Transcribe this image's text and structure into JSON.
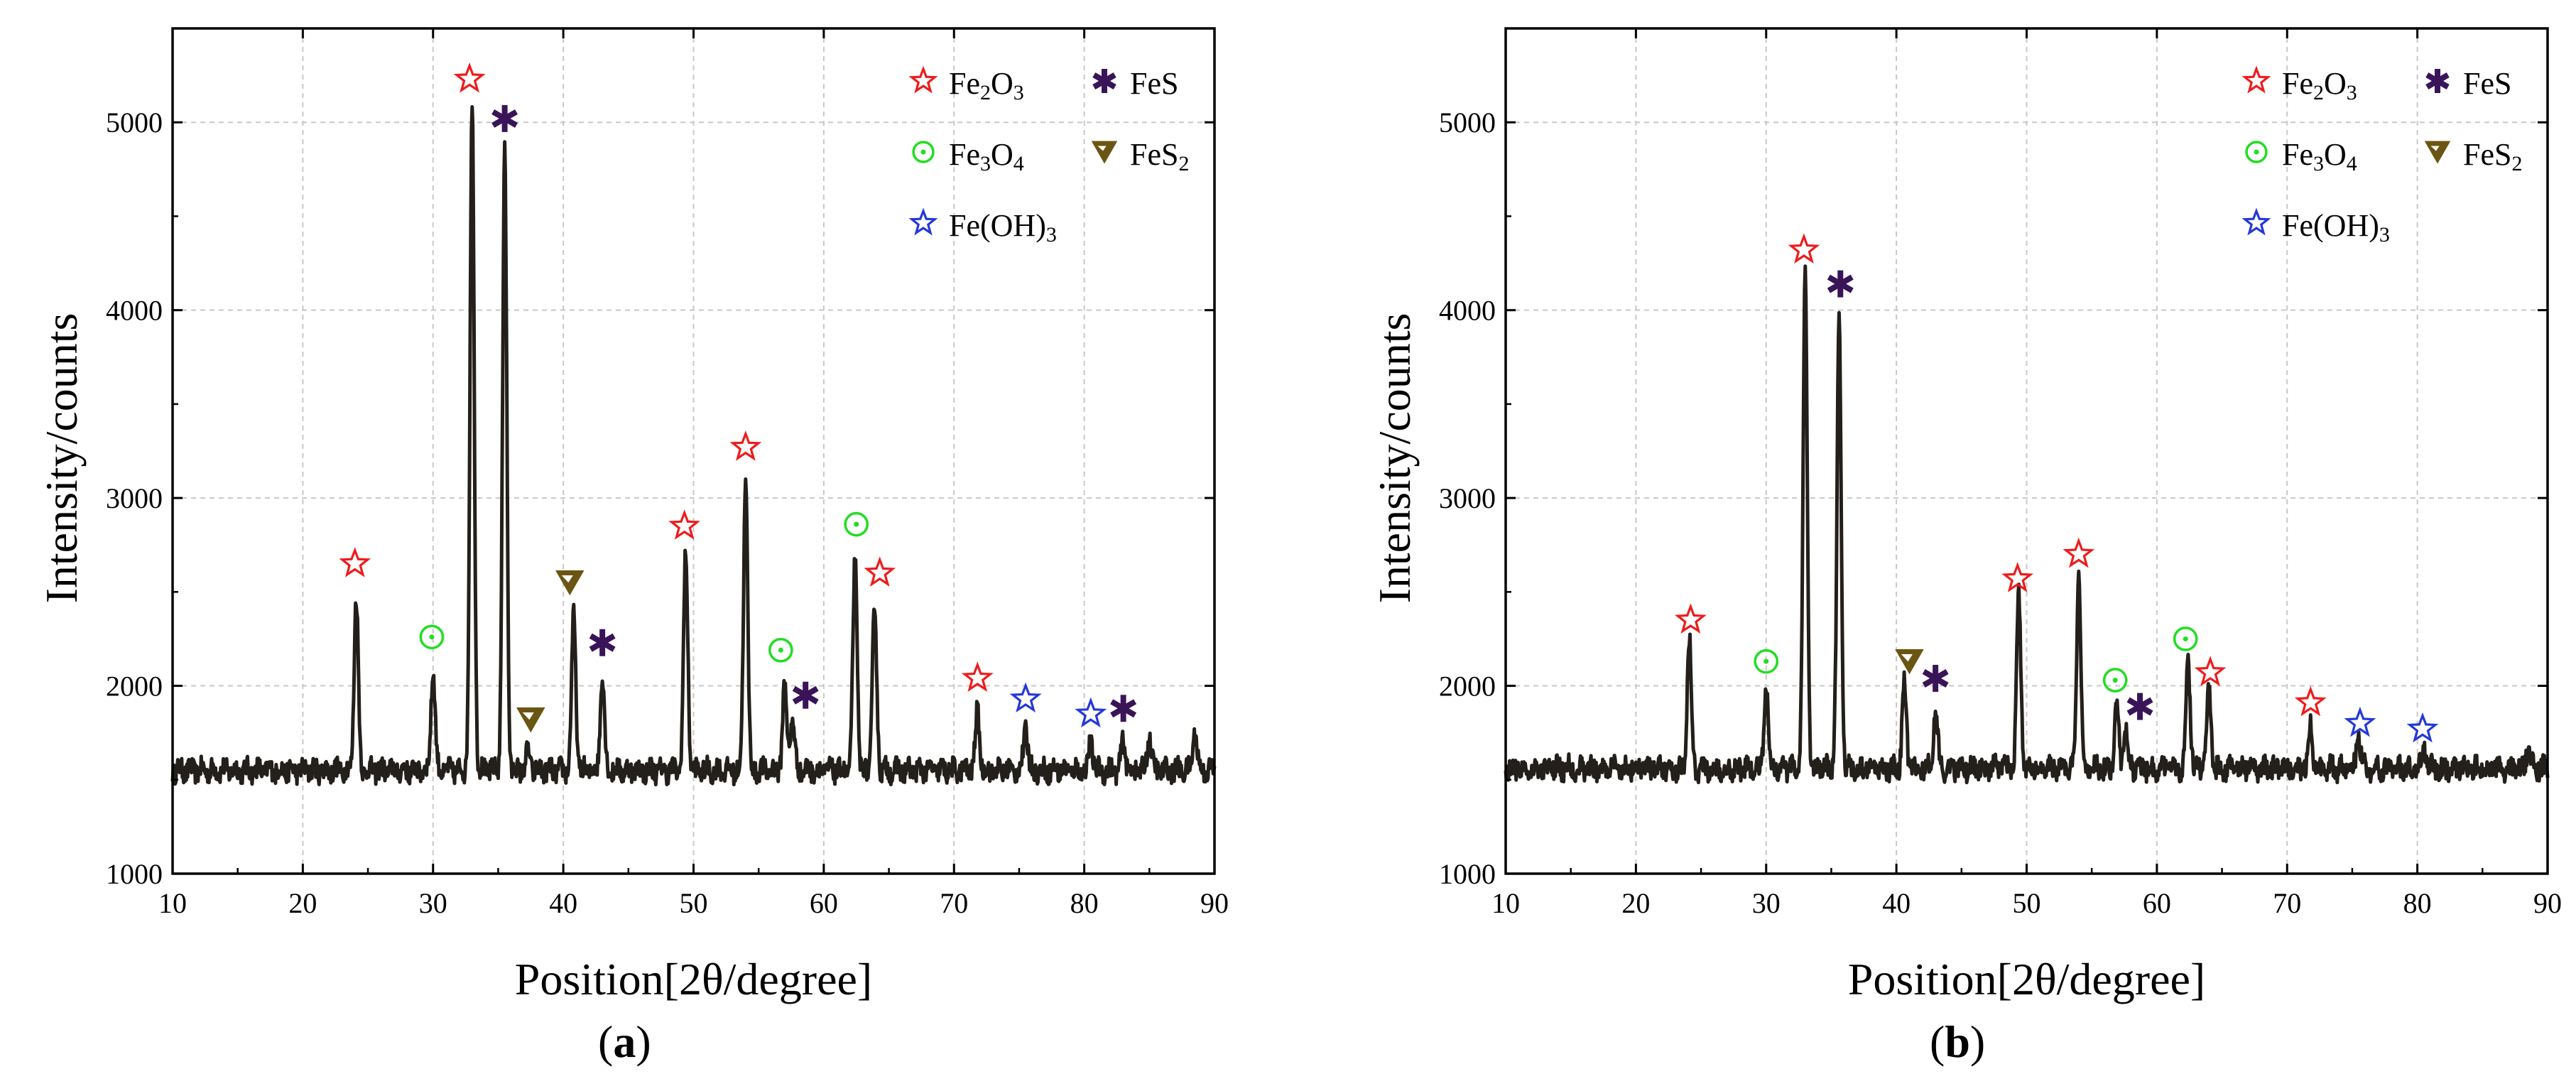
{
  "chart_data": [
    {
      "type": "line",
      "panel": "a",
      "xlabel": "Position[2θ/degree]",
      "ylabel": "Intensity/counts",
      "xlim": [
        10,
        90
      ],
      "ylim": [
        1000,
        5500
      ],
      "xticks": [
        10,
        20,
        30,
        40,
        50,
        60,
        70,
        80,
        90
      ],
      "yticks": [
        1000,
        2000,
        3000,
        4000,
        5000
      ],
      "grid": true,
      "legend_position": "top-right",
      "legend": [
        "Fe2O3",
        "FeS",
        "Fe3O4",
        "FeS2",
        "Fe(OH)3"
      ],
      "baseline": 1550,
      "series": [
        {
          "peaks": [
            {
              "x": 24.1,
              "y": 2470
            },
            {
              "x": 30.0,
              "y": 2080
            },
            {
              "x": 33.0,
              "y": 5110
            },
            {
              "x": 35.5,
              "y": 4880
            },
            {
              "x": 37.3,
              "y": 1650
            },
            {
              "x": 40.8,
              "y": 2370
            },
            {
              "x": 43.0,
              "y": 2060
            },
            {
              "x": 49.4,
              "y": 2710
            },
            {
              "x": 54.0,
              "y": 3100
            },
            {
              "x": 57.0,
              "y": 2010
            },
            {
              "x": 57.6,
              "y": 1830
            },
            {
              "x": 62.4,
              "y": 2680
            },
            {
              "x": 63.9,
              "y": 2430
            },
            {
              "x": 71.8,
              "y": 1860
            },
            {
              "x": 75.5,
              "y": 1780
            },
            {
              "x": 80.5,
              "y": 1700
            },
            {
              "x": 83.0,
              "y": 1700
            },
            {
              "x": 85.0,
              "y": 1730
            },
            {
              "x": 88.5,
              "y": 1760
            }
          ]
        }
      ],
      "markers": [
        {
          "phase": "Fe2O3",
          "x": 24.0,
          "y": 2650
        },
        {
          "phase": "Fe3O4",
          "x": 29.9,
          "y": 2260
        },
        {
          "phase": "Fe2O3",
          "x": 32.8,
          "y": 5230
        },
        {
          "phase": "FeS",
          "x": 35.5,
          "y": 5020
        },
        {
          "phase": "FeS2",
          "x": 37.5,
          "y": 1820
        },
        {
          "phase": "FeS2",
          "x": 40.5,
          "y": 2550
        },
        {
          "phase": "FeS",
          "x": 43.0,
          "y": 2230
        },
        {
          "phase": "Fe2O3",
          "x": 49.3,
          "y": 2850
        },
        {
          "phase": "Fe2O3",
          "x": 54.0,
          "y": 3270
        },
        {
          "phase": "Fe3O4",
          "x": 56.7,
          "y": 2190
        },
        {
          "phase": "FeS",
          "x": 58.6,
          "y": 1950
        },
        {
          "phase": "Fe3O4",
          "x": 62.5,
          "y": 2860
        },
        {
          "phase": "Fe2O3",
          "x": 64.3,
          "y": 2600
        },
        {
          "phase": "Fe2O3",
          "x": 71.8,
          "y": 2040
        },
        {
          "phase": "Fe(OH)3",
          "x": 75.5,
          "y": 1930
        },
        {
          "phase": "Fe(OH)3",
          "x": 80.5,
          "y": 1850
        },
        {
          "phase": "FeS",
          "x": 83.0,
          "y": 1880
        }
      ]
    },
    {
      "type": "line",
      "panel": "b",
      "xlabel": "Position[2θ/degree]",
      "ylabel": "Intensity/counts",
      "xlim": [
        10,
        90
      ],
      "ylim": [
        1000,
        5500
      ],
      "xticks": [
        10,
        20,
        30,
        40,
        50,
        60,
        70,
        80,
        90
      ],
      "yticks": [
        1000,
        2000,
        3000,
        4000,
        5000
      ],
      "grid": true,
      "legend_position": "top-right",
      "legend": [
        "Fe2O3",
        "FeS",
        "Fe3O4",
        "FeS2",
        "Fe(OH)3"
      ],
      "baseline": 1560,
      "series": [
        {
          "peaks": [
            {
              "x": 24.1,
              "y": 2260
            },
            {
              "x": 30.0,
              "y": 2010
            },
            {
              "x": 33.0,
              "y": 4200
            },
            {
              "x": 35.6,
              "y": 3970
            },
            {
              "x": 40.6,
              "y": 2000
            },
            {
              "x": 43.0,
              "y": 1880
            },
            {
              "x": 49.4,
              "y": 2480
            },
            {
              "x": 54.0,
              "y": 2590
            },
            {
              "x": 56.9,
              "y": 1890
            },
            {
              "x": 57.6,
              "y": 1780
            },
            {
              "x": 62.4,
              "y": 2120
            },
            {
              "x": 64.0,
              "y": 1980
            },
            {
              "x": 71.8,
              "y": 1790
            },
            {
              "x": 75.5,
              "y": 1720
            },
            {
              "x": 80.5,
              "y": 1670
            },
            {
              "x": 88.5,
              "y": 1660
            }
          ]
        }
      ],
      "markers": [
        {
          "phase": "Fe2O3",
          "x": 24.2,
          "y": 2350
        },
        {
          "phase": "Fe3O4",
          "x": 30.0,
          "y": 2130
        },
        {
          "phase": "Fe2O3",
          "x": 32.9,
          "y": 4320
        },
        {
          "phase": "FeS",
          "x": 35.7,
          "y": 4140
        },
        {
          "phase": "FeS2",
          "x": 41.0,
          "y": 2130
        },
        {
          "phase": "FeS",
          "x": 43.0,
          "y": 2040
        },
        {
          "phase": "Fe2O3",
          "x": 49.3,
          "y": 2570
        },
        {
          "phase": "Fe2O3",
          "x": 54.0,
          "y": 2700
        },
        {
          "phase": "Fe3O4",
          "x": 56.8,
          "y": 2030
        },
        {
          "phase": "FeS",
          "x": 58.7,
          "y": 1890
        },
        {
          "phase": "Fe3O4",
          "x": 62.2,
          "y": 2250
        },
        {
          "phase": "Fe2O3",
          "x": 64.1,
          "y": 2070
        },
        {
          "phase": "Fe2O3",
          "x": 71.8,
          "y": 1910
        },
        {
          "phase": "Fe(OH)3",
          "x": 75.6,
          "y": 1800
        },
        {
          "phase": "Fe(OH)3",
          "x": 80.4,
          "y": 1770
        }
      ]
    }
  ],
  "phase_styles": {
    "Fe2O3": {
      "marker": "star-outline",
      "color": "#ee1c1c"
    },
    "FeS": {
      "marker": "asterisk",
      "color": "#3a1458"
    },
    "Fe3O4": {
      "marker": "circle-dot",
      "color": "#22dd22"
    },
    "FeS2": {
      "marker": "triangle-down",
      "color": "#6b5512"
    },
    "Fe(OH)3": {
      "marker": "star-outline",
      "color": "#2438d8"
    }
  },
  "line_color": "#231f1a",
  "panel_labels": {
    "a": "a",
    "b": "b"
  }
}
